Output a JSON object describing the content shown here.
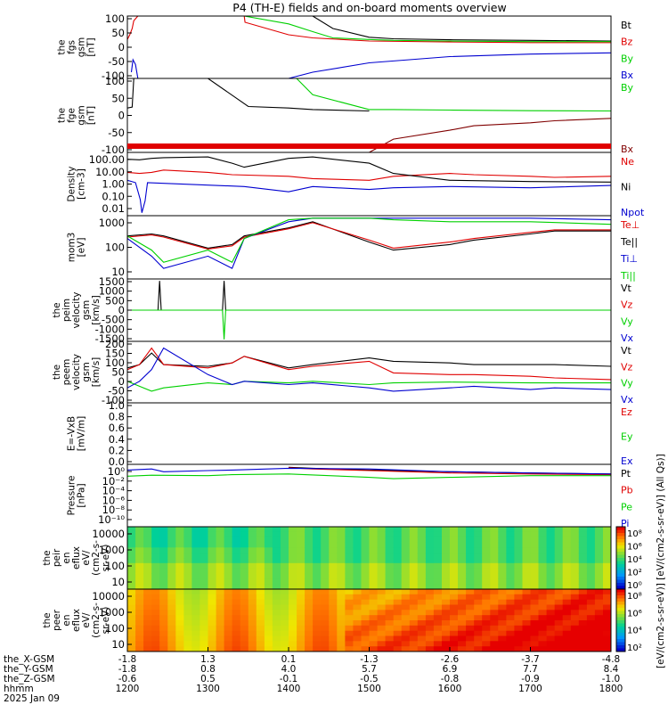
{
  "title": "P4 (TH-E) fields and on-board moments overview",
  "chart_data": [
    {
      "type": "line",
      "ylabel_lines": [
        "the",
        "fgs",
        "gsm",
        "[nT]"
      ],
      "ylim": [
        -100,
        100
      ],
      "yticks": [
        "100",
        "50",
        "0",
        "-50",
        "-100"
      ],
      "legend": [
        {
          "name": "Bt",
          "color": "#000000"
        },
        {
          "name": "Bz",
          "color": "#e00000"
        },
        {
          "name": "By",
          "color": "#00d000"
        },
        {
          "name": "Bx",
          "color": "#0000d0"
        }
      ],
      "series": [
        {
          "name": "Bt",
          "x": [
            1330,
            1345,
            1400,
            1430,
            1455,
            1500,
            1530,
            1600,
            1700,
            1800
          ],
          "values": [
            100,
            100,
            100,
            100,
            60,
            32,
            27,
            24,
            22,
            20
          ]
        },
        {
          "name": "Bz",
          "x": [
            1200,
            1203,
            1206,
            1208,
            1213,
            1300,
            1345,
            1346,
            1400,
            1430,
            1500,
            1600,
            1700,
            1800
          ],
          "values": [
            25,
            40,
            60,
            85,
            100,
            100,
            100,
            80,
            40,
            30,
            20,
            17,
            15,
            15
          ]
        },
        {
          "name": "By",
          "x": [
            1330,
            1345,
            1400,
            1430,
            1455,
            1500,
            1530,
            1600,
            1700,
            1800
          ],
          "values": [
            100,
            100,
            75,
            50,
            30,
            25,
            22,
            20,
            18,
            18
          ]
        },
        {
          "name": "Bx",
          "x": [
            1205,
            1207,
            1210,
            1213,
            1400,
            1430,
            1500,
            1600,
            1700,
            1800
          ],
          "values": [
            -80,
            -40,
            -55,
            -100,
            -100,
            -80,
            -50,
            -30,
            -22,
            -18
          ]
        }
      ]
    },
    {
      "type": "line",
      "ylabel_lines": [
        "the",
        "fge",
        "gsm",
        "[nT]"
      ],
      "ylim": [
        -125,
        125
      ],
      "yticks": [
        "100",
        "50",
        "0",
        "-50",
        "-100"
      ],
      "legend": [
        {
          "name": "By",
          "color": "#00d000"
        },
        {
          "name": "Bx",
          "color": "#800000"
        }
      ],
      "series": [
        {
          "name": "Bt",
          "x": [
            1200,
            1206,
            1208,
            1246,
            1300,
            1350,
            1400,
            1430,
            1500
          ],
          "values": [
            25,
            28,
            125,
            125,
            125,
            30,
            25,
            20,
            15
          ]
        },
        {
          "name": "By",
          "x": [
            1410,
            1430,
            1500,
            1530,
            1600,
            1700,
            1800
          ],
          "values": [
            125,
            70,
            20,
            20,
            18,
            16,
            15
          ]
        },
        {
          "name": "Bx",
          "x": [
            1500,
            1530,
            1600,
            1630,
            1700,
            1730,
            1800
          ],
          "values": [
            -125,
            -80,
            -50,
            -35,
            -25,
            -18,
            -10
          ]
        }
      ]
    },
    {
      "type": "line",
      "ylabel_lines": [
        "Density",
        "[cm-3]"
      ],
      "scale": "log",
      "ylim": [
        0.003,
        200
      ],
      "yticks": [
        "100.00",
        "10.00",
        "1.00",
        "0.10",
        "0.01"
      ],
      "legend": [
        {
          "name": "Ne",
          "color": "#e00000"
        },
        {
          "name": "Ni",
          "color": "#000000"
        },
        {
          "name": "Npot",
          "color": "#0000d0"
        }
      ],
      "series": [
        {
          "name": "Ne",
          "x": [
            1200,
            1215,
            1230,
            1245,
            1300,
            1330,
            1400,
            1430,
            1500,
            1530,
            1600,
            1630,
            1700,
            1730,
            1800
          ],
          "values": [
            6,
            5,
            6,
            9,
            6,
            4,
            3,
            2,
            1.5,
            3,
            5,
            4,
            3,
            2.5,
            3
          ]
        },
        {
          "name": "Ni",
          "x": [
            1200,
            1215,
            1230,
            1245,
            1300,
            1330,
            1345,
            1400,
            1430,
            1500,
            1530,
            1600,
            1700,
            1800
          ],
          "values": [
            60,
            55,
            70,
            80,
            90,
            30,
            15,
            70,
            90,
            30,
            5,
            1.5,
            1.2,
            1.1
          ]
        },
        {
          "name": "Npot",
          "x": [
            1200,
            1210,
            1216,
            1218,
            1222,
            1225,
            1345,
            1400,
            1430,
            1500,
            1530,
            1600,
            1700,
            1800
          ],
          "values": [
            1.5,
            1,
            0.05,
            0.005,
            0.04,
            1,
            0.5,
            0.2,
            0.5,
            0.3,
            0.4,
            0.5,
            0.4,
            0.6
          ]
        }
      ]
    },
    {
      "type": "line",
      "ylabel_lines": [
        "mom3",
        "[eV]"
      ],
      "scale": "log",
      "ylim": [
        3,
        4000
      ],
      "yticks": [
        "1000",
        "100",
        "10"
      ],
      "legend": [
        {
          "name": "Te⊥",
          "color": "#e00000"
        },
        {
          "name": "Te||",
          "color": "#000000"
        },
        {
          "name": "Ti⊥",
          "color": "#0000d0"
        },
        {
          "name": "Ti||",
          "color": "#00d000"
        }
      ],
      "series": [
        {
          "name": "Te||",
          "x": [
            1200,
            1230,
            1245,
            1300,
            1330,
            1345,
            1400,
            1430,
            1500,
            1530,
            1600,
            1630,
            1700,
            1730,
            1800
          ],
          "values": [
            400,
            500,
            400,
            100,
            150,
            400,
            1000,
            2000,
            200,
            80,
            150,
            250,
            500,
            700,
            700
          ]
        },
        {
          "name": "Te⊥",
          "x": [
            1200,
            1230,
            1245,
            1300,
            1330,
            1345,
            1400,
            1430,
            1500,
            1530,
            1600,
            1630,
            1700,
            1730,
            1800
          ],
          "values": [
            350,
            450,
            350,
            90,
            130,
            350,
            900,
            1800,
            250,
            100,
            200,
            300,
            600,
            800,
            800
          ]
        },
        {
          "name": "Ti⊥",
          "x": [
            1200,
            1230,
            1245,
            1300,
            1330,
            1345,
            1400,
            1430,
            1500,
            1530,
            1600,
            1700,
            1800
          ],
          "values": [
            300,
            40,
            10,
            40,
            10,
            300,
            2000,
            3000,
            3000,
            3000,
            3000,
            3000,
            2500
          ]
        },
        {
          "name": "Ti||",
          "x": [
            1200,
            1230,
            1245,
            1300,
            1330,
            1345,
            1400,
            1430,
            1500,
            1530,
            1600,
            1700,
            1800
          ],
          "values": [
            400,
            80,
            20,
            80,
            20,
            300,
            2500,
            3000,
            3000,
            2500,
            2000,
            2000,
            1500
          ]
        }
      ]
    },
    {
      "type": "line",
      "ylabel_lines": [
        "the",
        "peim",
        "velocity",
        "gsm",
        "[km/s]"
      ],
      "ylim": [
        -1600,
        1600
      ],
      "yticks": [
        "1500",
        "1000",
        "500",
        "0",
        "-500",
        "-1000",
        "-1500"
      ],
      "legend": [
        {
          "name": "Vt",
          "color": "#000000"
        },
        {
          "name": "Vz",
          "color": "#e00000"
        },
        {
          "name": "Vy",
          "color": "#00d000"
        },
        {
          "name": "Vx",
          "color": "#0000d0"
        }
      ],
      "series": [
        {
          "name": "Vt",
          "x": [
            1200,
            1238,
            1240,
            1242,
            1300,
            1318,
            1320,
            1322,
            1400,
            1800
          ],
          "values": [
            0,
            0,
            1500,
            0,
            0,
            0,
            1500,
            0,
            0,
            0
          ]
        },
        {
          "name": "Vy",
          "x": [
            1200,
            1318,
            1320,
            1322,
            1800
          ],
          "values": [
            0,
            0,
            -1500,
            0,
            0
          ]
        }
      ]
    },
    {
      "type": "line",
      "ylabel_lines": [
        "the",
        "peem",
        "velocity",
        "gsm",
        "[km/s]"
      ],
      "ylim": [
        -150,
        220
      ],
      "yticks": [
        "200",
        "150",
        "100",
        "50",
        "0",
        "-50",
        "-100"
      ],
      "legend": [
        {
          "name": "Vt",
          "color": "#000000"
        },
        {
          "name": "Vz",
          "color": "#e00000"
        },
        {
          "name": "Vy",
          "color": "#00d000"
        },
        {
          "name": "Vx",
          "color": "#0000d0"
        }
      ],
      "series": [
        {
          "name": "Vt",
          "x": [
            1200,
            1215,
            1230,
            1245,
            1300,
            1330,
            1345,
            1400,
            1430,
            1500,
            1530,
            1600,
            1630,
            1700,
            1730,
            1800
          ],
          "values": [
            60,
            80,
            150,
            80,
            70,
            90,
            130,
            60,
            80,
            120,
            100,
            90,
            80,
            80,
            80,
            70
          ]
        },
        {
          "name": "Vz",
          "x": [
            1200,
            1215,
            1230,
            1245,
            1300,
            1330,
            1345,
            1400,
            1430,
            1500,
            1530,
            1600,
            1630,
            1700,
            1730,
            1800
          ],
          "values": [
            50,
            80,
            180,
            80,
            60,
            90,
            130,
            50,
            70,
            100,
            30,
            20,
            20,
            10,
            0,
            -10
          ]
        },
        {
          "name": "Vy",
          "x": [
            1200,
            1215,
            1230,
            1245,
            1300,
            1330,
            1345,
            1400,
            1430,
            1500,
            1530,
            1600,
            1700,
            1800
          ],
          "values": [
            -20,
            -50,
            -80,
            -60,
            -30,
            -40,
            -20,
            -30,
            -20,
            -40,
            -30,
            -25,
            -30,
            -30
          ]
        },
        {
          "name": "Vx",
          "x": [
            1200,
            1215,
            1230,
            1245,
            1300,
            1330,
            1345,
            1400,
            1430,
            1500,
            1530,
            1600,
            1630,
            1700,
            1730,
            1800
          ],
          "values": [
            -60,
            -20,
            50,
            180,
            20,
            -40,
            -20,
            -40,
            -30,
            -60,
            -80,
            -60,
            -50,
            -70,
            -60,
            -70
          ]
        }
      ]
    },
    {
      "type": "line",
      "ylabel_lines": [
        "E=-VxB",
        "[mV/m]"
      ],
      "ylim": [
        0,
        1
      ],
      "yticks": [
        "1.0",
        "0.8",
        "0.6",
        "0.4",
        "0.2",
        "0.0"
      ],
      "legend": [
        {
          "name": "Ez",
          "color": "#e00000"
        },
        {
          "name": "Ey",
          "color": "#00d000"
        },
        {
          "name": "Ex",
          "color": "#0000d0"
        }
      ],
      "series": []
    },
    {
      "type": "line",
      "ylabel_lines": [
        "Pressure",
        "[nPa]"
      ],
      "scale": "log",
      "ylim": [
        1e-10,
        10
      ],
      "yticks": [
        "10⁰",
        "10⁻²",
        "10⁻⁴",
        "10⁻⁶",
        "10⁻⁸",
        "10⁻¹⁰"
      ],
      "legend": [
        {
          "name": "Pt",
          "color": "#000000"
        },
        {
          "name": "Pb",
          "color": "#e00000"
        },
        {
          "name": "Pe",
          "color": "#00d000"
        },
        {
          "name": "Pi",
          "color": "#0000d0"
        }
      ],
      "series": [
        {
          "name": "Pt",
          "x": [
            1400,
            1430,
            1500,
            1600,
            1700,
            1800
          ],
          "values": [
            3,
            2,
            1,
            0.5,
            0.3,
            0.2
          ]
        },
        {
          "name": "Pb",
          "x": [
            1400,
            1430,
            1500,
            1600,
            1700,
            1800
          ],
          "values": [
            2.5,
            1.5,
            0.8,
            0.3,
            0.2,
            0.15
          ]
        },
        {
          "name": "Pe",
          "x": [
            1200,
            1230,
            1300,
            1330,
            1400,
            1500,
            1530,
            1600,
            1700,
            1800
          ],
          "values": [
            0.08,
            0.12,
            0.1,
            0.15,
            0.2,
            0.05,
            0.03,
            0.05,
            0.1,
            0.1
          ]
        },
        {
          "name": "Pi",
          "x": [
            1200,
            1230,
            1245,
            1300,
            1330,
            1400,
            1500,
            1600,
            1700,
            1800
          ],
          "values": [
            1,
            1.5,
            0.5,
            0.8,
            1,
            2,
            1.5,
            0.5,
            0.3,
            0.2
          ]
        }
      ]
    },
    {
      "type": "heatmap",
      "ylabel_lines": [
        "the",
        "peir",
        "en",
        "eflux",
        "eV/",
        "(cm2-s-",
        "sr-eV)"
      ],
      "scale": "log",
      "ylim": [
        5,
        25000
      ],
      "yticks": [
        "10000",
        "1000",
        "100",
        "10"
      ],
      "colorbar_ticks": [
        "10⁸",
        "10⁶",
        "10⁴",
        "10²",
        "10⁰"
      ]
    },
    {
      "type": "heatmap",
      "ylabel_lines": [
        "the",
        "peer",
        "en",
        "eflux",
        "eV/",
        "(cm2-s-",
        "sr-eV)"
      ],
      "scale": "log",
      "ylim": [
        5,
        25000
      ],
      "yticks": [
        "10000",
        "1000",
        "100",
        "10"
      ],
      "colorbar_ticks": [
        "10⁸",
        "10⁶",
        "10⁴",
        "10²"
      ]
    }
  ],
  "colorbar_label": "[eV/(cm2-s-sr-eV)] [eV/(cm2-s-sr-eV)] (All Qs)]",
  "x_axis": {
    "rows": [
      {
        "label": "the_X-GSM",
        "values": [
          "-1.8",
          "1.3",
          "0.1",
          "-1.3",
          "-2.6",
          "-3.7",
          "-4.8"
        ]
      },
      {
        "label": "the_Y-GSM",
        "values": [
          "-1.8",
          "0.8",
          "4.0",
          "5.7",
          "6.9",
          "7.7",
          "8.4"
        ]
      },
      {
        "label": "the_Z-GSM",
        "values": [
          "-0.6",
          "0.5",
          "-0.1",
          "-0.5",
          "-0.8",
          "-0.9",
          "-1.0"
        ]
      },
      {
        "label": "hhmm",
        "values": [
          "1200",
          "1300",
          "1400",
          "1500",
          "1600",
          "1700",
          "1800"
        ]
      }
    ],
    "date": "2025 Jan 09"
  }
}
